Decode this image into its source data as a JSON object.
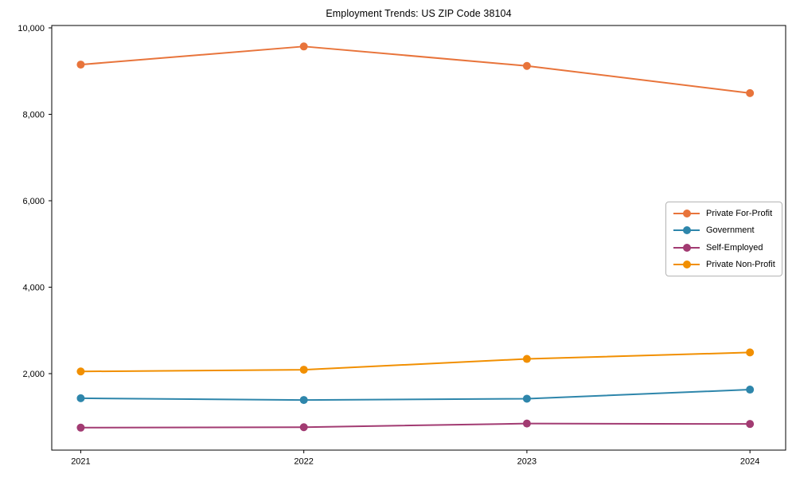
{
  "figure": {
    "background": "#ffffff"
  },
  "chart_data": {
    "type": "line",
    "title": "Employment Trends: US ZIP Code 38104",
    "x": [
      2021,
      2022,
      2023,
      2024
    ],
    "x_tick_labels": [
      "2021",
      "2022",
      "2023",
      "2024"
    ],
    "xlim": [
      2020.87,
      2024.16
    ],
    "ylim": [
      230,
      10055
    ],
    "y_ticks": [
      2000,
      4000,
      6000,
      8000,
      10000
    ],
    "y_tick_labels": [
      "2,000",
      "4,000",
      "6,000",
      "8,000",
      "10,000"
    ],
    "grid": false,
    "legend_position": "center right",
    "axis_color": "#000000",
    "text_color": "#000000",
    "marker": "circle",
    "series": [
      {
        "name": "Private For-Profit",
        "color": "#e8743b",
        "values": [
          9150,
          9570,
          9120,
          8490
        ]
      },
      {
        "name": "Government",
        "color": "#2e86ab",
        "values": [
          1430,
          1390,
          1420,
          1630
        ]
      },
      {
        "name": "Self-Employed",
        "color": "#a23b72",
        "values": [
          750,
          760,
          845,
          835
        ]
      },
      {
        "name": "Private Non-Profit",
        "color": "#f18f01",
        "values": [
          2050,
          2090,
          2340,
          2490
        ]
      }
    ]
  }
}
